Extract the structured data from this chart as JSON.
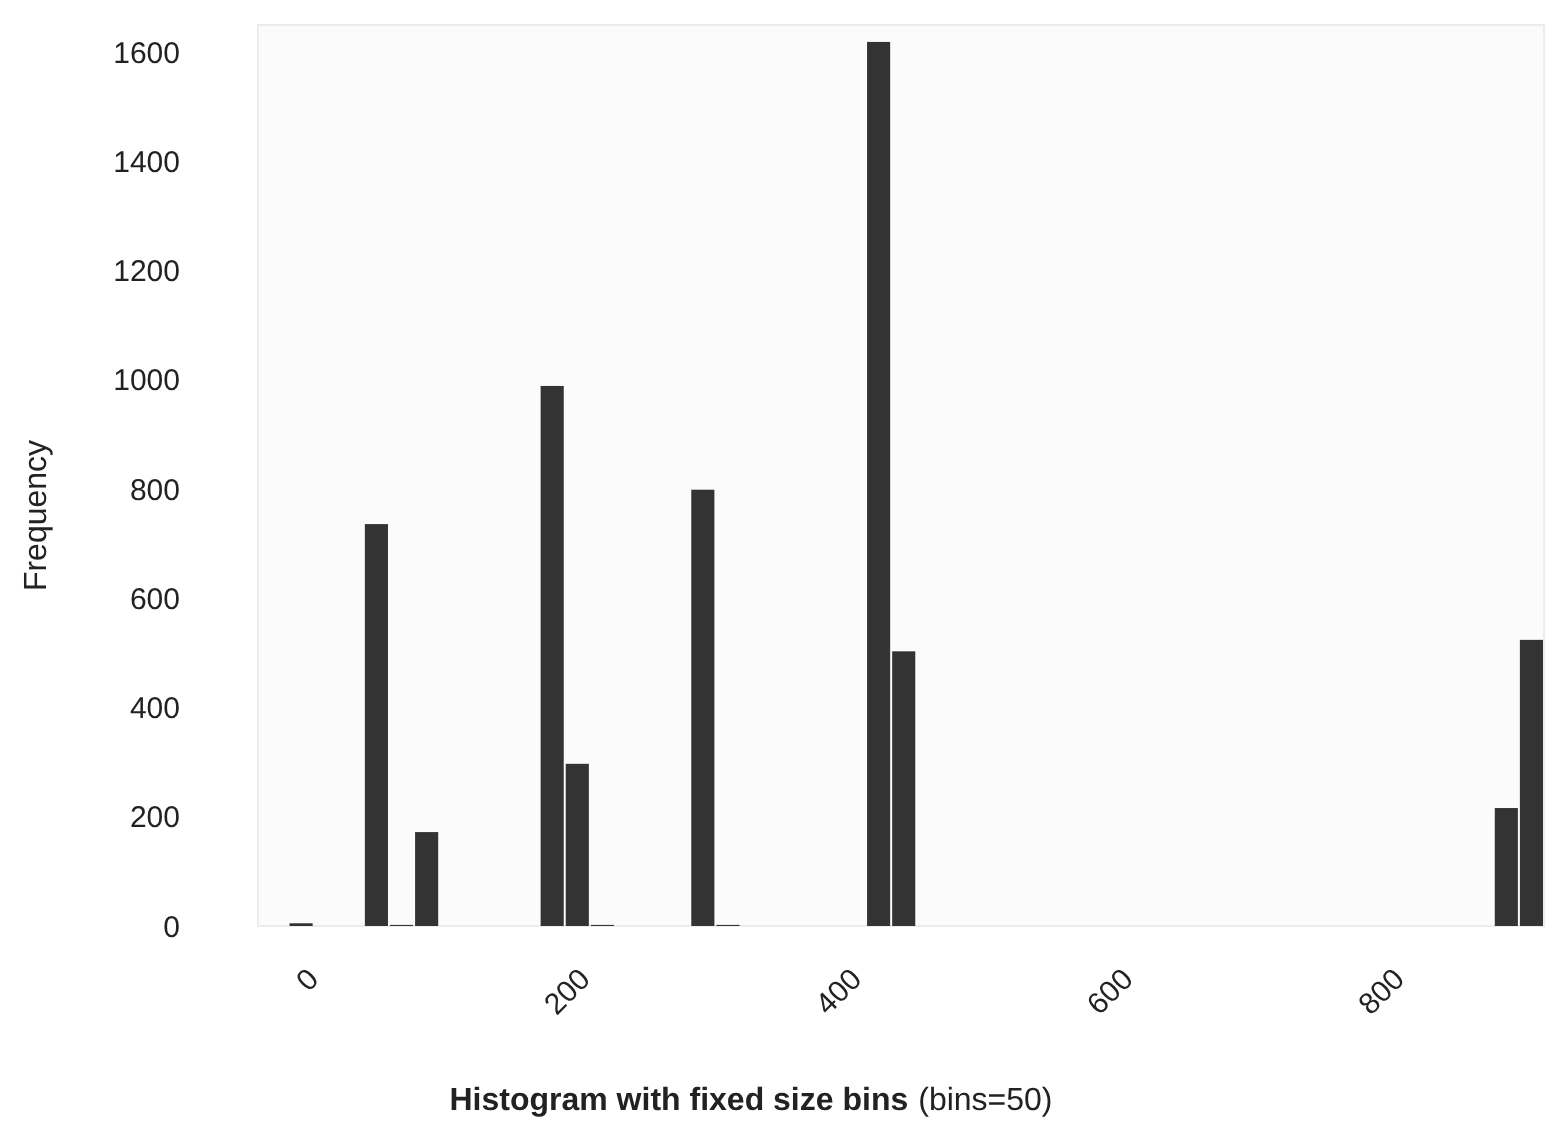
{
  "chart_data": {
    "type": "histogram",
    "title": "Histogram with fixed size bins",
    "subtitle": "(bins=50)",
    "ylabel": "Frequency",
    "bins": [
      -12.5,
      6,
      24.5,
      43,
      61.5,
      80,
      98.5,
      117,
      135.5,
      154,
      172.5,
      191,
      209.5,
      228,
      246.5,
      265,
      283.5,
      302,
      320.5,
      339,
      357.5,
      376,
      394.5,
      413,
      431.5,
      450,
      468.5,
      487,
      505.5,
      524,
      542.5,
      561,
      579.5,
      598,
      616.5,
      635,
      653.5,
      672,
      690.5,
      709,
      727.5,
      746,
      764.5,
      783,
      801.5,
      820,
      838.5,
      857,
      875.5,
      894,
      912.5
    ],
    "values": [
      5,
      0,
      0,
      736,
      2,
      172,
      0,
      0,
      0,
      0,
      989,
      297,
      2,
      0,
      0,
      0,
      799,
      2,
      0,
      0,
      0,
      0,
      0,
      1619,
      503,
      0,
      0,
      0,
      0,
      0,
      0,
      0,
      0,
      0,
      0,
      0,
      0,
      0,
      0,
      0,
      0,
      0,
      0,
      0,
      0,
      0,
      0,
      0,
      216,
      524
    ],
    "color": "#333333",
    "xlim": [
      -35,
      912.5
    ],
    "xticks": [
      0,
      200,
      400,
      600,
      800
    ],
    "ylim": [
      0,
      1650
    ],
    "yticks": [
      0,
      200,
      400,
      600,
      800,
      1000,
      1200,
      1400,
      1600
    ],
    "grid": false
  }
}
